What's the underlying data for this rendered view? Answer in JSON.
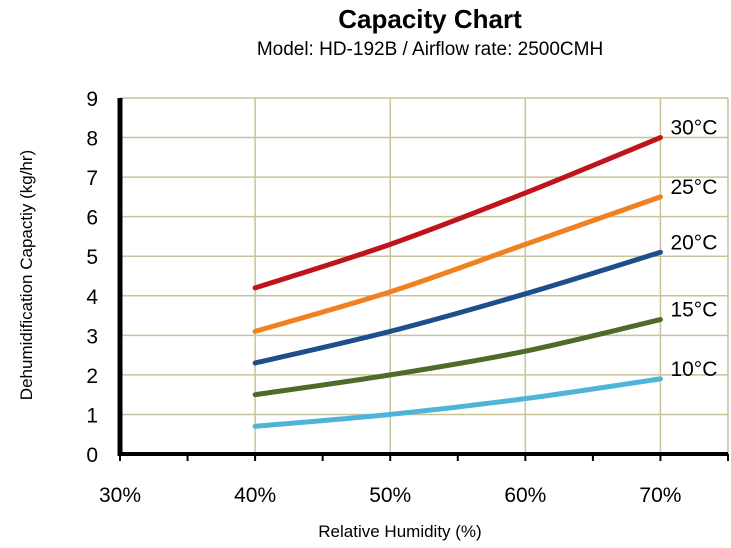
{
  "chart_data": {
    "type": "line",
    "title": "Capacity Chart",
    "subtitle": "Model: HD-192B / Airflow rate: 2500CMH",
    "xlabel": "Relative Humidity (%)",
    "ylabel": "Dehumidification Capactiy (kg/hr)",
    "xlim": [
      30,
      75
    ],
    "ylim": [
      0,
      9
    ],
    "x_ticks": [
      30,
      40,
      50,
      60,
      70
    ],
    "x_tick_labels": [
      "30%",
      "40%",
      "50%",
      "60%",
      "70%"
    ],
    "y_ticks": [
      0,
      1,
      2,
      3,
      4,
      5,
      6,
      7,
      8,
      9
    ],
    "y_tick_labels": [
      "0",
      "1",
      "2",
      "3",
      "4",
      "5",
      "6",
      "7",
      "8",
      "9"
    ],
    "grid": true,
    "x": [
      40,
      50,
      60,
      70
    ],
    "series": [
      {
        "name": "30°C",
        "color": "#c0141c",
        "values": [
          4.2,
          5.3,
          6.6,
          8.0
        ]
      },
      {
        "name": "25°C",
        "color": "#f08020",
        "values": [
          3.1,
          4.1,
          5.3,
          6.5
        ]
      },
      {
        "name": "20°C",
        "color": "#1f4e8c",
        "values": [
          2.3,
          3.1,
          4.05,
          5.1
        ]
      },
      {
        "name": "15°C",
        "color": "#4f6b2a",
        "values": [
          1.5,
          2.0,
          2.6,
          3.4
        ]
      },
      {
        "name": "10°C",
        "color": "#4fb4d8",
        "values": [
          0.7,
          1.0,
          1.4,
          1.9
        ]
      }
    ],
    "colors": {
      "grid": "#c9c29a",
      "axis": "#000000",
      "background": "#ffffff"
    }
  }
}
